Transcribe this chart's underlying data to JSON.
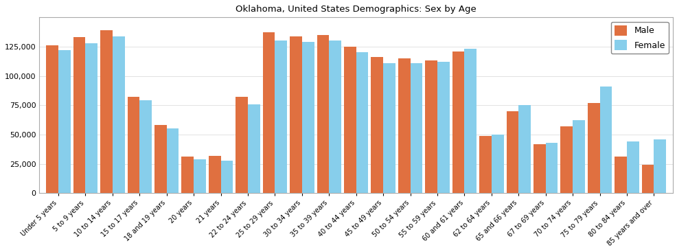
{
  "title": "Oklahoma, United States Demographics: Sex by Age",
  "categories": [
    "Under 5 years",
    "5 to 9 years",
    "10 to 14 years",
    "15 to 17 years",
    "18 and 19 years",
    "20 years",
    "21 years",
    "22 to 24 years",
    "25 to 29 years",
    "30 to 34 years",
    "35 to 39 years",
    "40 to 44 years",
    "45 to 49 years",
    "50 to 54 years",
    "55 to 59 years",
    "60 and 61 years",
    "62 to 64 years",
    "65 and 66 years",
    "67 to 69 years",
    "70 to 74 years",
    "75 to 79 years",
    "80 to 84 years",
    "85 years and over"
  ],
  "male": [
    126000,
    133000,
    139000,
    82000,
    58000,
    31000,
    32000,
    82000,
    137000,
    134000,
    135000,
    125000,
    116000,
    115000,
    113000,
    121000,
    49000,
    70000,
    42000,
    57000,
    77000,
    31000,
    24000
  ],
  "female": [
    122000,
    128000,
    134000,
    79000,
    55000,
    29000,
    28000,
    76000,
    130000,
    129000,
    130000,
    120000,
    111000,
    111000,
    112000,
    123000,
    50000,
    75000,
    43000,
    62000,
    91000,
    44000,
    46000
  ],
  "male_color": "#E07040",
  "female_color": "#87CEEB",
  "ylim": [
    0,
    150000
  ],
  "yticks": [
    0,
    25000,
    50000,
    75000,
    100000,
    125000
  ],
  "bar_width": 0.45,
  "figsize": [
    9.87,
    3.67
  ],
  "dpi": 100,
  "bg_color": "#ffffff",
  "spine_color": "#aaaaaa"
}
